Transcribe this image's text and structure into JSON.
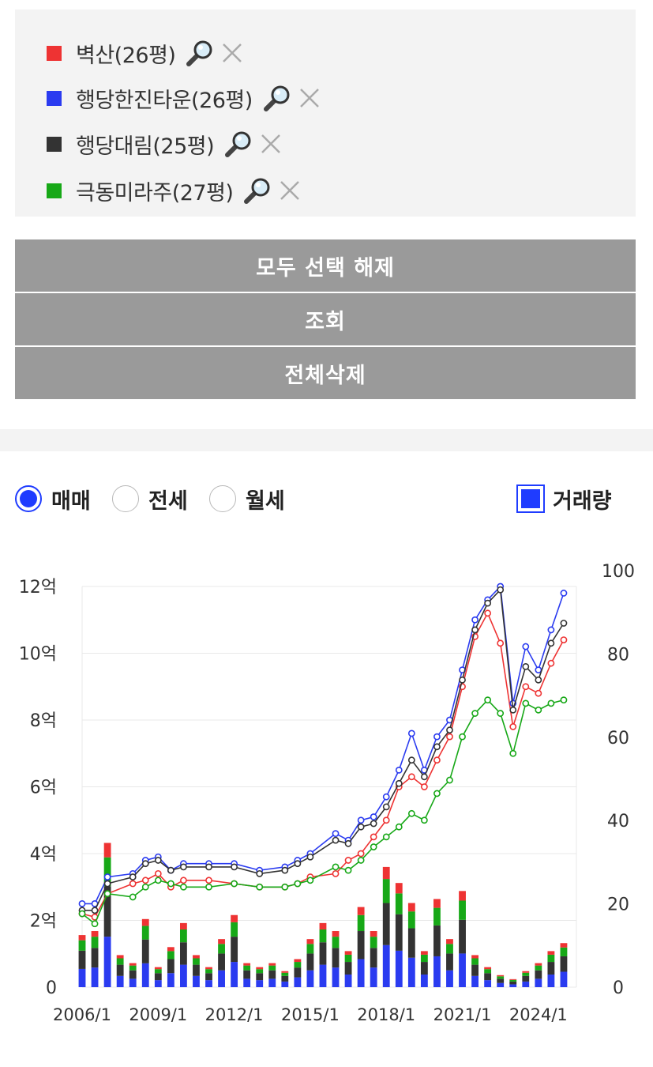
{
  "compare": {
    "items": [
      {
        "label": "벽산(26평)",
        "color": "#ee3333"
      },
      {
        "label": "행당한진타운(26평)",
        "color": "#2a3bf0"
      },
      {
        "label": "행당대림(25평)",
        "color": "#333333"
      },
      {
        "label": "극동미라주(27평)",
        "color": "#17a817"
      }
    ],
    "zoom_icon": "magnifier-icon",
    "remove_icon": "close-icon"
  },
  "buttons": {
    "deselect_all": "모두 선택 해제",
    "search": "조회",
    "delete_all": "전체삭제"
  },
  "filters": {
    "trade": "매매",
    "jeonse": "전세",
    "monthly": "월세",
    "selected": "매매",
    "volume": "거래량",
    "volume_checked": true
  },
  "chart_data": {
    "type": "line",
    "x_ticks": [
      "2006/1",
      "2009/1",
      "2012/1",
      "2015/1",
      "2018/1",
      "2021/1",
      "2024/1"
    ],
    "y_left_ticks": [
      "0",
      "2억",
      "4억",
      "6억",
      "8억",
      "10억",
      "12억"
    ],
    "y_left_range": [
      0,
      12
    ],
    "y_right_ticks": [
      "0",
      "20",
      "40",
      "60",
      "80",
      "100"
    ],
    "y_right_range": [
      0,
      100
    ],
    "grid": true,
    "series": [
      {
        "name": "벽산(26평)",
        "color": "#ee3333",
        "x": [
          "2006-01",
          "2006-07",
          "2007-01",
          "2008-01",
          "2008-07",
          "2009-01",
          "2009-07",
          "2010-01",
          "2011-01",
          "2012-01",
          "2013-01",
          "2014-01",
          "2014-07",
          "2015-01",
          "2016-01",
          "2016-07",
          "2017-01",
          "2017-07",
          "2018-01",
          "2018-07",
          "2019-01",
          "2019-07",
          "2020-01",
          "2020-07",
          "2021-01",
          "2021-07",
          "2022-01",
          "2022-07",
          "2023-01",
          "2023-07",
          "2024-01",
          "2024-07",
          "2025-01"
        ],
        "y": [
          2.2,
          2.1,
          2.8,
          3.1,
          3.2,
          3.4,
          3.0,
          3.2,
          3.2,
          3.1,
          3.0,
          3.0,
          3.1,
          3.3,
          3.4,
          3.8,
          4.0,
          4.5,
          5.0,
          6.0,
          6.3,
          6.0,
          6.8,
          7.5,
          9.0,
          10.5,
          11.2,
          10.3,
          7.8,
          9.0,
          8.8,
          9.7,
          10.4
        ]
      },
      {
        "name": "행당한진타운(26평)",
        "color": "#2a3bf0",
        "x": [
          "2006-01",
          "2006-07",
          "2007-01",
          "2008-01",
          "2008-07",
          "2009-01",
          "2009-07",
          "2010-01",
          "2011-01",
          "2012-01",
          "2013-01",
          "2014-01",
          "2014-07",
          "2015-01",
          "2016-01",
          "2016-07",
          "2017-01",
          "2017-07",
          "2018-01",
          "2018-07",
          "2019-01",
          "2019-07",
          "2020-01",
          "2020-07",
          "2021-01",
          "2021-07",
          "2022-01",
          "2022-07",
          "2023-01",
          "2023-07",
          "2024-01",
          "2024-07",
          "2025-01"
        ],
        "y": [
          2.5,
          2.5,
          3.3,
          3.4,
          3.8,
          3.9,
          3.5,
          3.7,
          3.7,
          3.7,
          3.5,
          3.6,
          3.8,
          4.0,
          4.6,
          4.4,
          5.0,
          5.1,
          5.7,
          6.5,
          7.6,
          6.5,
          7.5,
          8.0,
          9.5,
          11.0,
          11.6,
          12.0,
          8.5,
          10.2,
          9.5,
          10.7,
          11.8
        ]
      },
      {
        "name": "행당대림(25평)",
        "color": "#333333",
        "x": [
          "2006-01",
          "2006-07",
          "2007-01",
          "2008-01",
          "2008-07",
          "2009-01",
          "2009-07",
          "2010-01",
          "2011-01",
          "2012-01",
          "2013-01",
          "2014-01",
          "2014-07",
          "2015-01",
          "2016-01",
          "2016-07",
          "2017-01",
          "2017-07",
          "2018-01",
          "2018-07",
          "2019-01",
          "2019-07",
          "2020-01",
          "2020-07",
          "2021-01",
          "2021-07",
          "2022-01",
          "2022-07",
          "2023-01",
          "2023-07",
          "2024-01",
          "2024-07",
          "2025-01"
        ],
        "y": [
          2.3,
          2.3,
          3.1,
          3.3,
          3.7,
          3.8,
          3.5,
          3.6,
          3.6,
          3.6,
          3.4,
          3.5,
          3.7,
          3.9,
          4.4,
          4.3,
          4.8,
          4.9,
          5.4,
          6.1,
          6.8,
          6.3,
          7.2,
          7.7,
          9.2,
          10.7,
          11.5,
          11.9,
          8.3,
          9.6,
          9.2,
          10.3,
          10.9
        ]
      },
      {
        "name": "극동미라주(27평)",
        "color": "#17a817",
        "x": [
          "2006-01",
          "2006-07",
          "2007-01",
          "2008-01",
          "2008-07",
          "2009-01",
          "2009-07",
          "2010-01",
          "2011-01",
          "2012-01",
          "2013-01",
          "2014-01",
          "2014-07",
          "2015-01",
          "2016-01",
          "2016-07",
          "2017-01",
          "2017-07",
          "2018-01",
          "2018-07",
          "2019-01",
          "2019-07",
          "2020-01",
          "2020-07",
          "2021-01",
          "2021-07",
          "2022-01",
          "2022-07",
          "2023-01",
          "2023-07",
          "2024-01",
          "2024-07",
          "2025-01"
        ],
        "y": [
          2.2,
          1.9,
          2.8,
          2.7,
          3.0,
          3.2,
          3.1,
          3.0,
          3.0,
          3.1,
          3.0,
          3.0,
          3.1,
          3.2,
          3.6,
          3.5,
          3.8,
          4.2,
          4.5,
          4.8,
          5.2,
          5.0,
          5.8,
          6.2,
          7.5,
          8.2,
          8.6,
          8.2,
          7.0,
          8.5,
          8.3,
          8.5,
          8.6
        ]
      }
    ],
    "volume": {
      "axis": "right",
      "colors": [
        "#2a3bf0",
        "#333333",
        "#17a817",
        "#ee3333"
      ],
      "x": [
        "2006-01",
        "2006-07",
        "2007-01",
        "2007-07",
        "2008-01",
        "2008-07",
        "2009-01",
        "2009-07",
        "2010-01",
        "2010-07",
        "2011-01",
        "2011-07",
        "2012-01",
        "2012-07",
        "2013-01",
        "2013-07",
        "2014-01",
        "2014-07",
        "2015-01",
        "2015-07",
        "2016-01",
        "2016-07",
        "2017-01",
        "2017-07",
        "2018-01",
        "2018-07",
        "2019-01",
        "2019-07",
        "2020-01",
        "2020-07",
        "2021-01",
        "2021-07",
        "2022-01",
        "2022-07",
        "2023-01",
        "2023-07",
        "2024-01",
        "2024-07",
        "2025-01"
      ],
      "values": [
        13,
        14,
        36,
        8,
        6,
        17,
        5,
        10,
        16,
        8,
        5,
        12,
        18,
        6,
        5,
        6,
        4,
        7,
        12,
        16,
        14,
        9,
        20,
        14,
        30,
        26,
        21,
        9,
        22,
        12,
        24,
        8,
        5,
        3,
        2,
        4,
        6,
        9,
        11
      ]
    }
  }
}
